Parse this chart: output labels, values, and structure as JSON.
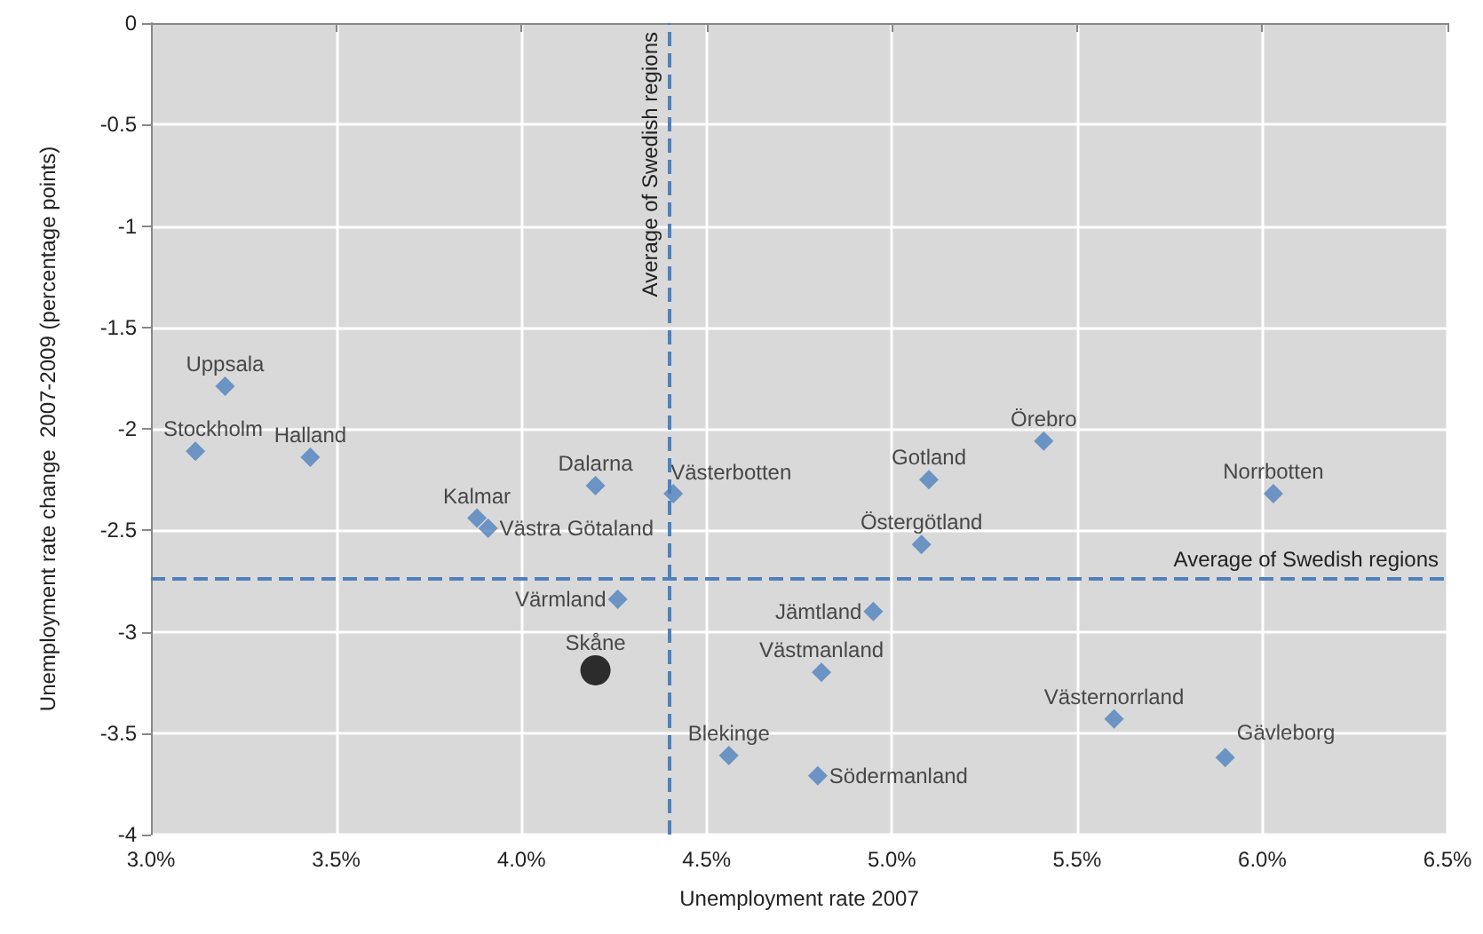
{
  "chart_data": {
    "type": "scatter",
    "xlabel": "Unemployment rate 2007",
    "ylabel": "Unemployment rate change  2007-2009 (percentage points)",
    "xlim": [
      3,
      6.5
    ],
    "xticks": [
      {
        "value": 3,
        "label": "3.0%"
      },
      {
        "value": 3.5,
        "label": "3.5%"
      },
      {
        "value": 4,
        "label": "4.0%"
      },
      {
        "value": 4.5,
        "label": "4.5%"
      },
      {
        "value": 5,
        "label": "5.0%"
      },
      {
        "value": 5.5,
        "label": "5.5%"
      },
      {
        "value": 6,
        "label": "6.0%"
      },
      {
        "value": 6.5,
        "label": "6.5%"
      }
    ],
    "ylim": [
      -4,
      0
    ],
    "yticks": [
      -4,
      -3.5,
      -3,
      -2.5,
      -2,
      -1.5,
      -1,
      -0.5,
      0
    ],
    "grid": true,
    "legend": false,
    "marker": "diamond",
    "ref_lines": [
      {
        "axis": "x",
        "value": 4.4,
        "label": "Average of Swedish regions",
        "color": "#4f81bd",
        "line_style": "dashed"
      },
      {
        "axis": "y",
        "value": -2.74,
        "label": "Average of Swedish regions",
        "color": "#4f81bd",
        "line_style": "dashed"
      }
    ],
    "series": [
      {
        "name": "Uppsala",
        "color": "#4f81bd",
        "x": [
          3.2
        ],
        "values": [
          -1.79
        ]
      },
      {
        "name": "Stockholm",
        "color": "#4f81bd",
        "x": [
          3.12
        ],
        "values": [
          -2.11
        ]
      },
      {
        "name": "Halland",
        "color": "#4f81bd",
        "x": [
          3.43
        ],
        "values": [
          -2.14
        ]
      },
      {
        "name": "Dalarna",
        "color": "#4f81bd",
        "x": [
          4.2
        ],
        "values": [
          -2.28
        ]
      },
      {
        "name": "Västerbotten",
        "color": "#4f81bd",
        "x": [
          4.41
        ],
        "values": [
          -2.32
        ]
      },
      {
        "name": "Kalmar",
        "color": "#4f81bd",
        "x": [
          3.88
        ],
        "values": [
          -2.44
        ]
      },
      {
        "name": "Västra Götaland",
        "color": "#4f81bd",
        "x": [
          3.91
        ],
        "values": [
          -2.49
        ]
      },
      {
        "name": "Värmland",
        "color": "#4f81bd",
        "x": [
          4.26
        ],
        "values": [
          -2.84
        ]
      },
      {
        "name": "Skåne",
        "color": "#000000",
        "marker": "circle",
        "x": [
          4.2
        ],
        "values": [
          -3.19
        ]
      },
      {
        "name": "Blekinge",
        "color": "#4f81bd",
        "x": [
          4.56
        ],
        "values": [
          -3.61
        ]
      },
      {
        "name": "Södermanland",
        "color": "#4f81bd",
        "x": [
          4.8
        ],
        "values": [
          -3.71
        ]
      },
      {
        "name": "Västmanland",
        "color": "#4f81bd",
        "x": [
          4.81
        ],
        "values": [
          -3.2
        ]
      },
      {
        "name": "Jämtland",
        "color": "#4f81bd",
        "x": [
          4.95
        ],
        "values": [
          -2.9
        ]
      },
      {
        "name": "Östergötland",
        "color": "#4f81bd",
        "x": [
          5.08
        ],
        "values": [
          -2.57
        ]
      },
      {
        "name": "Gotland",
        "color": "#4f81bd",
        "x": [
          5.1
        ],
        "values": [
          -2.25
        ]
      },
      {
        "name": "Örebro",
        "color": "#4f81bd",
        "x": [
          5.41
        ],
        "values": [
          -2.06
        ]
      },
      {
        "name": "Västernorrland",
        "color": "#4f81bd",
        "x": [
          5.6
        ],
        "values": [
          -3.43
        ]
      },
      {
        "name": "Gävleborg",
        "color": "#4f81bd",
        "x": [
          5.9
        ],
        "values": [
          -3.62
        ]
      },
      {
        "name": "Norrbotten",
        "color": "#4f81bd",
        "x": [
          6.03
        ],
        "values": [
          -2.32
        ]
      }
    ]
  }
}
